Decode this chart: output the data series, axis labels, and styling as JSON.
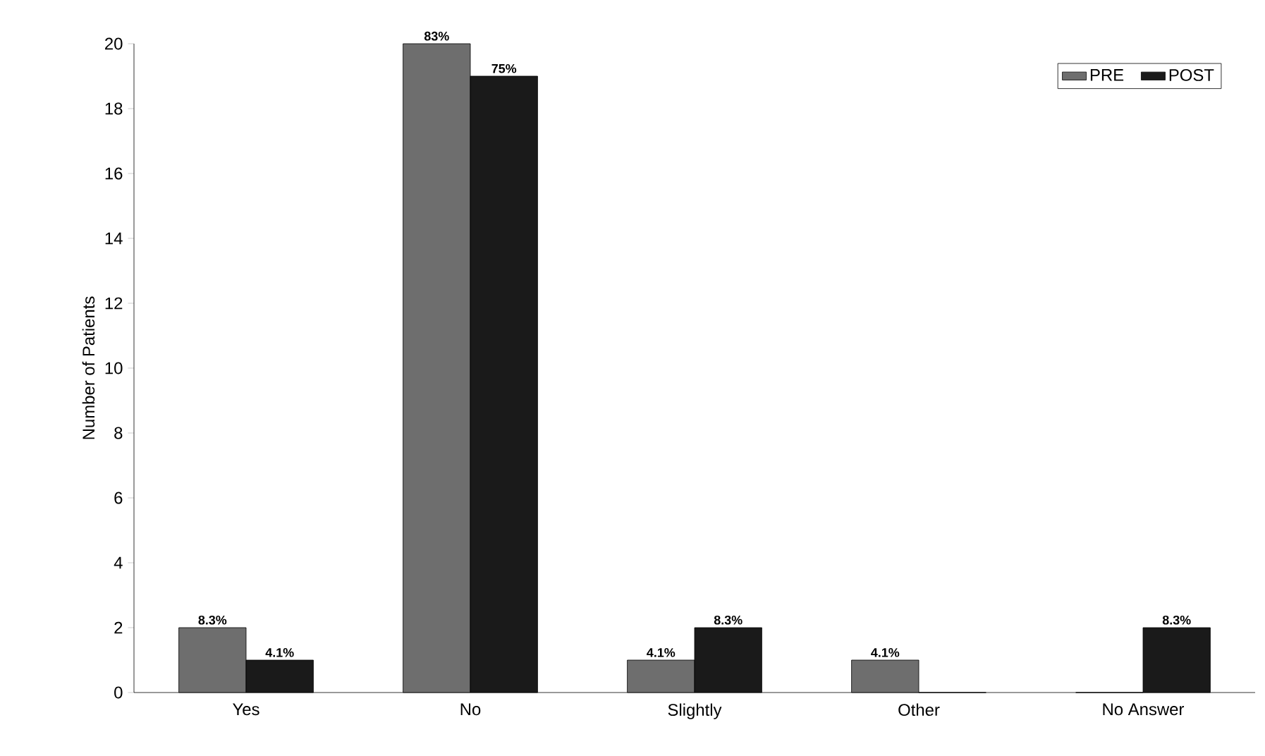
{
  "chart_data": {
    "type": "bar",
    "ylabel": "Number of Patients",
    "categories": [
      "Yes",
      "No",
      "Slightly",
      "Other",
      "No Answer"
    ],
    "series": [
      {
        "name": "PRE",
        "color": "#6e6e6e",
        "values": [
          2,
          20,
          1,
          1,
          0
        ]
      },
      {
        "name": "POST",
        "color": "#1a1a1a",
        "values": [
          1,
          19,
          2,
          0,
          2
        ]
      }
    ],
    "annotations": [
      {
        "text": "8.3%",
        "x": "Yes",
        "y": 2
      },
      {
        "text": "4.1%",
        "x": "Yes",
        "y": 1
      },
      {
        "text": "83%",
        "x": "No",
        "y": 20
      },
      {
        "text": "75%",
        "x": "No",
        "y": 19
      },
      {
        "text": "4.1%",
        "x": "Slightly",
        "y": 1
      },
      {
        "text": "8.3%",
        "x": "Slightly",
        "y": 2
      },
      {
        "text": "4.1%",
        "x": "Other",
        "y": 1
      },
      {
        "text": "8.3%",
        "x": "No Answer",
        "y": 2
      }
    ],
    "ylim": [
      0,
      20
    ],
    "yticks": [
      0,
      2,
      4,
      6,
      8,
      10,
      12,
      14,
      16,
      18,
      20
    ],
    "legend": "top right",
    "grid": false
  }
}
